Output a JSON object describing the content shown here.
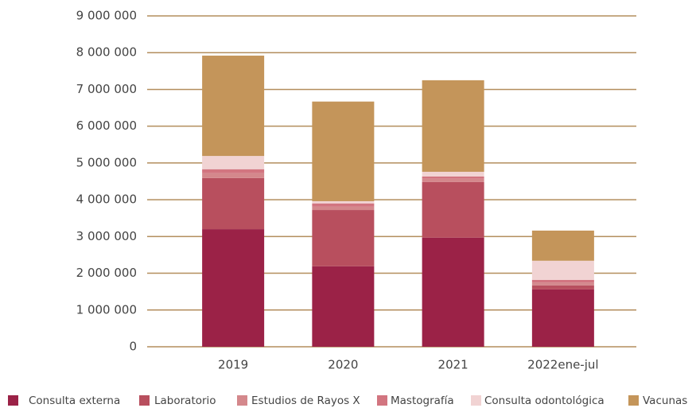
{
  "chart_data": {
    "type": "stacked_bar",
    "categories": [
      "2019",
      "2020",
      "2021",
      "2022ene-jul"
    ],
    "series": [
      {
        "name": "Consulta externa",
        "color": "#9b2247",
        "values": [
          3200000,
          2190000,
          2970000,
          1560000
        ]
      },
      {
        "name": "Laboratorio",
        "color": "#b84f5e",
        "values": [
          1390000,
          1530000,
          1510000,
          110000
        ]
      },
      {
        "name": "Estudios de Rayos X",
        "color": "#d4888c",
        "values": [
          130000,
          90000,
          90000,
          80000
        ]
      },
      {
        "name": "Mastografía",
        "color": "#d27580",
        "values": [
          110000,
          90000,
          60000,
          70000
        ]
      },
      {
        "name": "Consulta odontológica",
        "color": "#f1d3d3",
        "values": [
          360000,
          60000,
          130000,
          520000
        ]
      },
      {
        "name": "Vacunas",
        "color": "#c4955a",
        "values": [
          2730000,
          2710000,
          2490000,
          820000
        ]
      }
    ],
    "ylim": [
      0,
      9000000
    ],
    "yticks": [
      0,
      {
        "value": 1000000,
        "label": "1 000 000"
      },
      {
        "value": 2000000,
        "label": "2 000 000"
      },
      {
        "value": 3000000,
        "label": "3 000 000"
      },
      {
        "value": 4000000,
        "label": "4 000 000"
      },
      {
        "value": 5000000,
        "label": "5 000 000"
      },
      {
        "value": 6000000,
        "label": "6 000 000"
      },
      {
        "value": 7000000,
        "label": "7 000 000"
      },
      {
        "value": 8000000,
        "label": "8 000 000"
      },
      {
        "value": 9000000,
        "label": "9 000 000"
      }
    ],
    "grid": true,
    "legend": "bottom"
  }
}
